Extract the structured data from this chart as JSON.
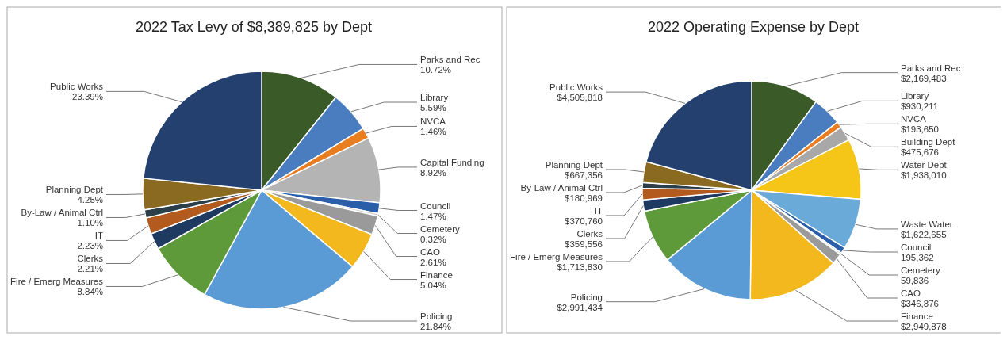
{
  "chart_data": [
    {
      "type": "pie",
      "title": "2022 Tax Levy of $8,389,825 by Dept",
      "categories": [
        "Parks and Rec",
        "Library",
        "NVCA",
        "Capital Funding",
        "Council",
        "Cemetery",
        "CAO",
        "Finance",
        "Policing",
        "Fire / Emerg Measures",
        "Clerks",
        "IT",
        "By-Law / Animal Ctrl",
        "Planning Dept",
        "Public Works"
      ],
      "values": [
        10.72,
        5.59,
        1.46,
        8.92,
        1.47,
        0.32,
        2.61,
        5.04,
        21.84,
        8.84,
        2.21,
        2.23,
        1.1,
        4.25,
        23.39
      ],
      "value_labels": [
        "10.72%",
        "5.59%",
        "1.46%",
        "8.92%",
        "1.47%",
        "0.32%",
        "2.61%",
        "5.04%",
        "21.84%",
        "8.84%",
        "2.21%",
        "2.23%",
        "1.10%",
        "4.25%",
        "23.39%"
      ],
      "colors": [
        "#3a5a28",
        "#4a7cc0",
        "#e87d22",
        "#b4b4b4",
        "#2a5ea8",
        "#cfcfcf",
        "#9a9a9a",
        "#f2b81e",
        "#5b9bd5",
        "#5e9a3a",
        "#1f3a60",
        "#b35a1f",
        "#2a3f4a",
        "#8a6a20",
        "#24406e"
      ]
    },
    {
      "type": "pie",
      "title": "2022 Operating Expense by Dept",
      "categories": [
        "Parks and Rec",
        "Library",
        "NVCA",
        "Building Dept",
        "Water Dept",
        "Waste Water",
        "Council",
        "Cemetery",
        "CAO",
        "Finance",
        "Policing",
        "Fire / Emerg Measures",
        "Clerks",
        "IT",
        "By-Law / Animal Ctrl",
        "Planning Dept",
        "Public Works"
      ],
      "values": [
        2169483,
        930211,
        193650,
        475676,
        1938010,
        1622655,
        195362,
        59836,
        346876,
        2949878,
        2991434,
        1713830,
        359556,
        370760,
        180969,
        667356,
        4505818
      ],
      "value_labels": [
        "$2,169,483",
        "$930,211",
        "$193,650",
        "$475,676",
        "$1,938,010",
        "$1,622,655",
        "195,362",
        "59,836",
        "$346,876",
        "$2,949,878",
        "$2,991,434",
        "$1,713,830",
        "$359,556",
        "$370,760",
        "$180,969",
        "$667,356",
        "$4,505,818"
      ],
      "colors": [
        "#3a5a28",
        "#4a7cc0",
        "#e87d22",
        "#a8a8a8",
        "#f5c518",
        "#6aaad8",
        "#2a5ea8",
        "#cfcfcf",
        "#9a9a9a",
        "#f2b81e",
        "#5b9bd5",
        "#5e9a3a",
        "#1f3a60",
        "#b35a1f",
        "#2a3f4a",
        "#8a6a20",
        "#24406e"
      ]
    }
  ]
}
